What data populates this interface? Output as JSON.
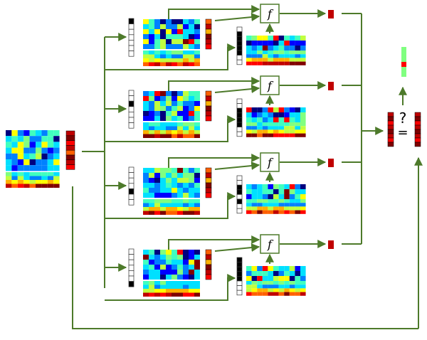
{
  "diagram": {
    "function_label": "f",
    "unknown_mark": "?",
    "equals_mark": "=",
    "arrow_color": "#4d7a2a",
    "node_border": "#4d7a2a",
    "palette": [
      "#00007f",
      "#0000ff",
      "#0080ff",
      "#00e0ff",
      "#40ffbf",
      "#80ff80",
      "#c0ff40",
      "#ffff00",
      "#ffb000",
      "#ff6000",
      "#ff0000",
      "#c00000",
      "#800000"
    ],
    "branches": 4
  }
}
